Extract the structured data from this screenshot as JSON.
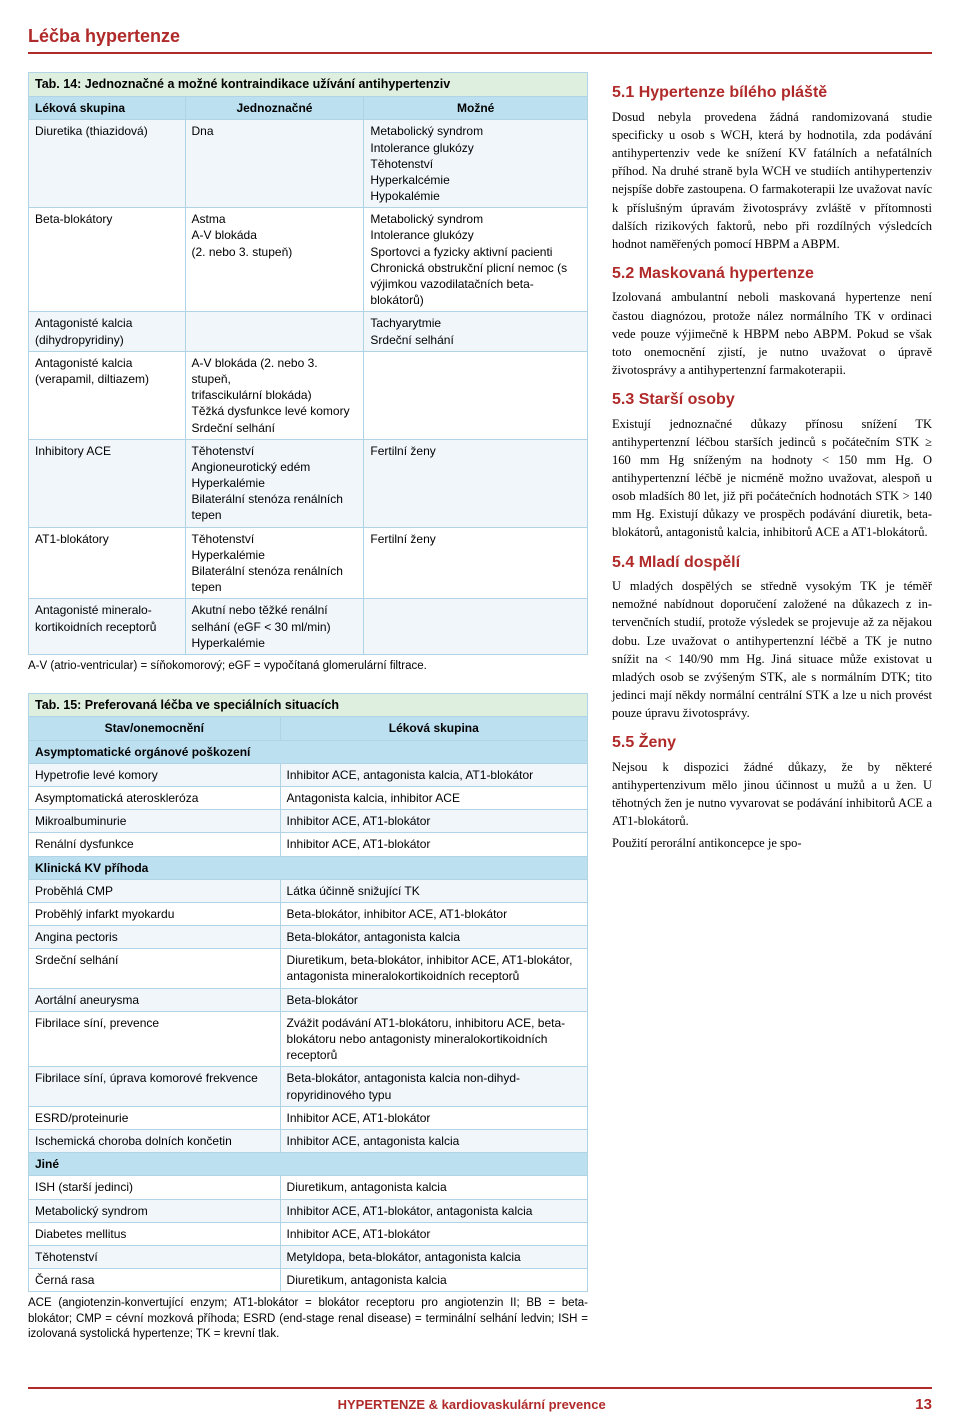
{
  "colors": {
    "accent": "#b02a2a",
    "table_border": "#b0d3e6",
    "caption_bg": "#dfefdf",
    "header_bg": "#bde0f0",
    "row_alt_bg": "#f0f6fa",
    "row_bg": "#ffffff",
    "text": "#000000"
  },
  "typography": {
    "body_family": "Myriad Pro, Segoe UI, Arial, sans-serif",
    "serif_family": "Georgia, Times New Roman, serif",
    "section_title_pt": 18,
    "h2_pt": 16,
    "body_pt": 12.5,
    "table_pt": 12,
    "note_pt": 11.5
  },
  "section_title": "Léčba hypertenze",
  "table14": {
    "caption": "Tab. 14: Jednoznačné a možné kontraindikace užívání antihypertenziv",
    "columns": [
      "Léková skupina",
      "Jednoznačné",
      "Možné"
    ],
    "col_widths_pct": [
      28,
      32,
      40
    ],
    "rows": [
      [
        "Diuretika (thiazidová)",
        "Dna",
        "Metabolický syndrom\nIntolerance glukózy\nTěhotenství\nHyperkalcémie\nHypokalémie"
      ],
      [
        "Beta-blokátory",
        "Astma\nA-V blokáda\n(2. nebo 3. stupeň)",
        "Metabolický syndrom\nIntolerance glukózy\nSportovci a fyzicky aktivní pacienti\nChronická obstrukční plicní nemoc (s výjimkou vazodilatač­ních beta-blokátorů)"
      ],
      [
        "Antagonisté kalcia\n(dihydropyridiny)",
        "",
        "Tachyarytmie\nSrdeční selhání"
      ],
      [
        "Antagonisté kalcia\n(verapamil, diltiazem)",
        "A-V blokáda (2. nebo 3. stupeň,\ntrifascikulární blokáda)\nTěžká dysfunkce levé komory\nSrdeční selhání",
        ""
      ],
      [
        "Inhibitory ACE",
        "Těhotenství\nAngioneurotický edém\nHyperkalémie\nBilaterální stenóza renálních tepen",
        "Fertilní ženy"
      ],
      [
        "AT1-blokátory",
        "Těhotenství\nHyperkalémie\nBilaterální stenóza renálních tepen",
        "Fertilní ženy"
      ],
      [
        "Antagonisté mineralo­kortikoidních receptorů",
        "Akutní nebo těžké renální selhání (eGF < 30 ml/min)\nHyperkalémie",
        ""
      ]
    ],
    "note": "A-V (atrio-ventricular) = síňokomorový; eGF = vypočítaná glomerulární filtrace."
  },
  "table15": {
    "caption": "Tab. 15: Preferovaná léčba ve speciálních situacích",
    "columns": [
      "Stav/onemocnění",
      "Léková skupina"
    ],
    "col_widths_pct": [
      45,
      55
    ],
    "sections": [
      {
        "band": "Asymptomatické orgánové poškození",
        "rows": [
          [
            "Hypetrofie levé komory",
            "Inhibitor ACE, antagonista kalcia, AT1-blokátor"
          ],
          [
            "Asymptomatická ateroskleróza",
            "Antagonista kalcia, inhibitor ACE"
          ],
          [
            "Mikroalbuminurie",
            "Inhibitor ACE, AT1-blokátor"
          ],
          [
            "Renální dysfunkce",
            "Inhibitor ACE, AT1-blokátor"
          ]
        ]
      },
      {
        "band": "Klinická KV příhoda",
        "rows": [
          [
            "Proběhlá CMP",
            "Látka účinně snižující TK"
          ],
          [
            "Proběhlý infarkt myokardu",
            "Beta-blokátor, inhibitor ACE, AT1-blokátor"
          ],
          [
            "Angina pectoris",
            "Beta-blokátor, antagonista kalcia"
          ],
          [
            "Srdeční selhání",
            "Diuretikum, beta-blokátor, inhibitor ACE, AT1-blokátor, antagonista mineralokortikoid­ních receptorů"
          ],
          [
            "Aortální aneurysma",
            "Beta-blokátor"
          ],
          [
            "Fibrilace síní, prevence",
            "Zvážit podávání AT1-blokátoru, inhibitoru ACE, beta-blokátoru nebo antagonisty mineralokor­tikoidních receptorů"
          ],
          [
            "Fibrilace síní, úprava komorové frekvence",
            "Beta-blokátor, antagonista kalcia non-dihyd­ropyridinového typu"
          ],
          [
            "ESRD/proteinurie",
            "Inhibitor ACE, AT1-blokátor"
          ],
          [
            "Ischemická choroba dolních končetin",
            "Inhibitor ACE, antagonista kalcia"
          ]
        ]
      },
      {
        "band": "Jiné",
        "rows": [
          [
            "ISH (starší jedinci)",
            "Diuretikum, antagonista kalcia"
          ],
          [
            "Metabolický syndrom",
            "Inhibitor ACE, AT1-blokátor, antagonista kalcia"
          ],
          [
            "Diabetes mellitus",
            "Inhibitor ACE, AT1-blokátor"
          ],
          [
            "Těhotenství",
            "Metyldopa, beta-blokátor, antagonista kalcia"
          ],
          [
            "Černá rasa",
            "Diuretikum, antagonista kalcia"
          ]
        ]
      }
    ],
    "note": "ACE (angiotenzin-konvertující enzym; AT1-blokátor = blokátor receptoru pro angiotenzin II; BB = beta-blokátor; CMP = cévní mozková příhoda; ESRD (end-stage renal disease) = terminální selhání ledvin; ISH = izolovaná systolická hypertenze; TK = krevní tlak."
  },
  "right_sections": [
    {
      "title": "5.1 Hypertenze bílého pláště",
      "body": "Dosud nebyla provedena žádná randomi­zovaná studie specificky u osob s WCH, která by hodnotila, zda podávání antihy­pertenziv vede ke snížení KV fatálních a nefatálních příhod. Na druhé straně byla WCH ve studiích antihypertenziv nejspíše dobře zastoupena. O farmako­terapii lze uvažovat navíc k příslušným úpravám životosprávy zvláště v přítom­nosti dalších rizikových faktorů, nebo při rozdílných výsledcích hodnot namě­řených pomocí HBPM a ABPM."
    },
    {
      "title": "5.2 Maskovaná hypertenze",
      "body": "Izolovaná ambulantní neboli maskovaná hypertenze není častou diagnózou, pro­tože nález normálního TK v ordinaci vede pouze výjimečně k HBPM nebo ABPM. Pokud se však toto onemocnění zjistí, je nutno uvažovat o úpravě životosprávy a antihypertenzní farmakoterapii."
    },
    {
      "title": "5.3 Starší osoby",
      "body": "Existují jednoznačné důkazy příno­su snížení TK antihypertenzní léč­bou starších jedinců s počátečním STK ≥ 160 mm Hg sníženým na hod­noty < 150 mm Hg. O antihypertenz­ní léčbě je nicméně možno uvažovat, alespoň u osob mladších 80 let, již při po­čátečních hodnotách STK > 140 mm Hg. Existují důkazy ve prospěch podávání diuretik, beta-blokátorů, antagonistů kalcia, inhibitorů ACE a AT1-blokátorů."
    },
    {
      "title": "5.4 Mladí dospělí",
      "body": "U mladých dospělých se středně vyso­kým TK je téměř nemožné nabídnout doporučení založené na důkazech z in­tervenčních studií, protože výsledek se projevuje až za nějakou dobu. Lze uvažo­vat o antihypertenzní léčbě a TK je nutno snížit na < 140/90 mm Hg. Jiná situace může existovat u mladých osob se zvý­šeným STK, ale s normálním DTK; tito jedinci mají někdy normální centrální STK a lze u nich provést pouze úpravu životosprávy."
    },
    {
      "title": "5.5 Ženy",
      "body": "Nejsou k dispozici žádné důkazy, že by některé antihypertenzivum mělo jinou účinnost u mužů a u žen. U těhotných žen je nutno vyvarovat se podávání inhibito­rů ACE a AT1-blokátorů.\nPoužití perorální antikoncepce je spo-"
    }
  ],
  "footer": {
    "journal": "HYPERTENZE & kardiovaskulární prevence",
    "page": "13"
  }
}
